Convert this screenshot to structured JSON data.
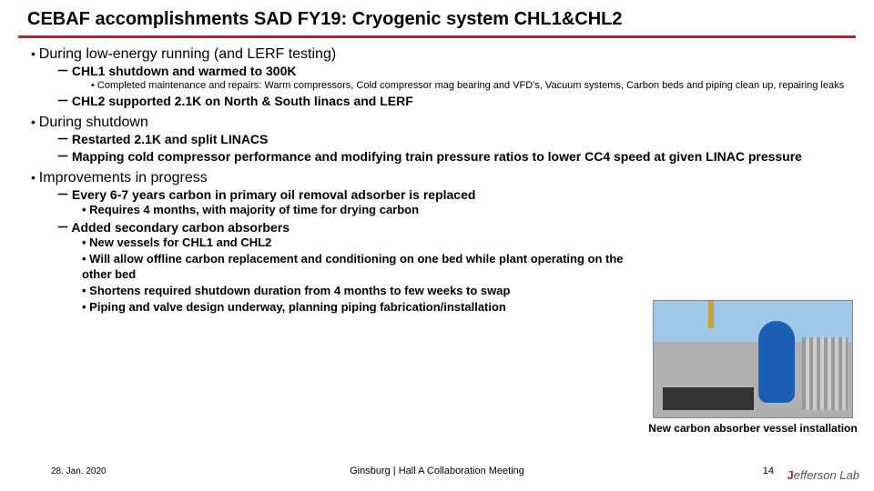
{
  "title": "CEBAF accomplishments SAD FY19: Cryogenic system CHL1&CHL2",
  "colors": {
    "rule": "#b8232f",
    "bg": "#ffffff"
  },
  "sections": [
    {
      "label": "During low-energy running (and LERF testing)",
      "items": [
        {
          "label": "CHL1 shutdown and warmed to 300K",
          "sub_small": [
            "Completed maintenance and repairs: Warm compressors, Cold compressor mag bearing and VFD's, Vacuum systems, Carbon beds and piping clean up, repairing leaks"
          ]
        },
        {
          "label": "CHL2 supported 2.1K on North & South linacs and LERF"
        }
      ]
    },
    {
      "label": "During shutdown",
      "items": [
        {
          "label": "Restarted 2.1K and split LINACS"
        },
        {
          "label": "Mapping cold compressor performance and modifying train pressure ratios to lower CC4 speed at given LINAC pressure"
        }
      ]
    },
    {
      "label": "Improvements in progress",
      "items": [
        {
          "label": "Every 6-7 years carbon in primary oil removal adsorber is replaced",
          "sub": [
            "Requires 4 months, with majority of time for drying carbon"
          ]
        },
        {
          "label": "Added secondary carbon absorbers",
          "sub": [
            "New vessels for CHL1 and CHL2",
            "Will allow offline carbon replacement and conditioning on one bed while plant operating on the other bed",
            "Shortens required shutdown duration from 4 months to few weeks to swap",
            "Piping and valve design underway, planning piping fabrication/installation"
          ]
        }
      ]
    }
  ],
  "photo_caption": "New carbon absorber vessel installation",
  "footer": {
    "date": "28. Jan. 2020",
    "center": "Ginsburg | Hall A Collaboration Meeting",
    "page": "14",
    "logo": "Jefferson Lab"
  }
}
